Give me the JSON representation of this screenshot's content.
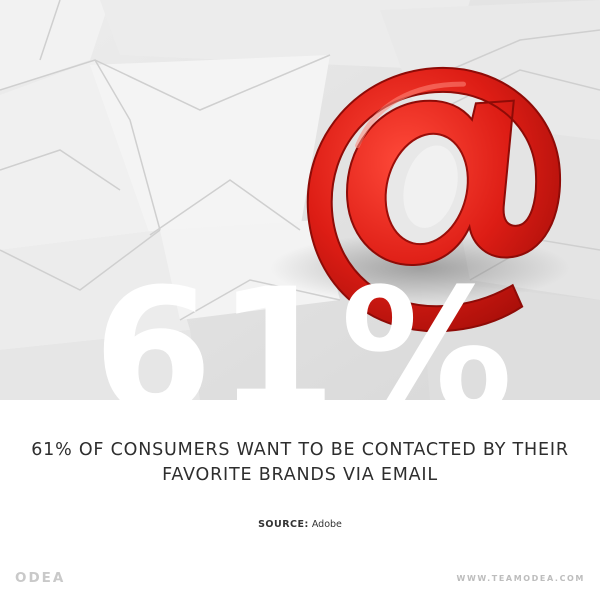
{
  "hero": {
    "stat": "61%",
    "image_subject": "red at-sign on envelopes",
    "accent_color": "#d61b14"
  },
  "headline": {
    "line1": "61% OF CONSUMERS WANT TO BE CONTACTED BY THEIR",
    "line2": "FAVORITE BRANDS VIA EMAIL"
  },
  "source": {
    "label": "SOURCE:",
    "value": "Adobe"
  },
  "footer": {
    "logo": "ODEA",
    "url": "WWW.TEAMODEA.COM"
  }
}
